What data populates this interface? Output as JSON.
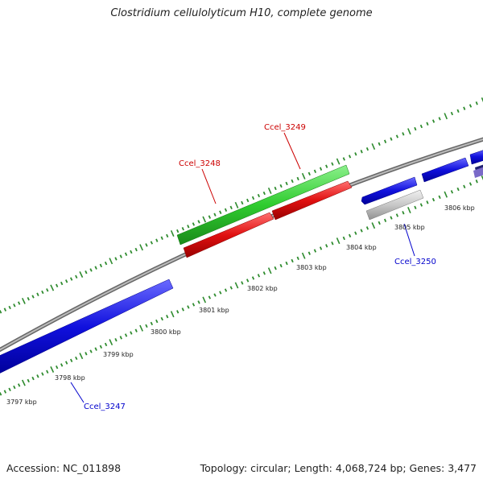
{
  "title": "Clostridium cellulolyticum H10, complete genome",
  "footer": {
    "accession": "Accession: NC_011898",
    "summary": "Topology: circular; Length: 4,068,724 bp; Genes: 3,477"
  },
  "scale_labels": [
    "3797 kbp",
    "3798 kbp",
    "3799 kbp",
    "3800 kbp",
    "3801 kbp",
    "3802 kbp",
    "3803 kbp",
    "3804 kbp",
    "3805 kbp",
    "3806 kbp"
  ],
  "gene_labels": [
    {
      "text": "Ccel_3247",
      "color": "#0000cc"
    },
    {
      "text": "Ccel_3248",
      "color": "#cc0000"
    },
    {
      "text": "Ccel_3249",
      "color": "#cc0000"
    },
    {
      "text": "Ccel_3250",
      "color": "#0000cc"
    }
  ],
  "colors": {
    "forward_gene": "#2fcc2f",
    "reverse_gene": "#e01010",
    "blue_gene": "#1010dd",
    "pseudo_gene": "#c8c8c8",
    "tick": "#2e8b2e",
    "backbone": "#888888"
  }
}
